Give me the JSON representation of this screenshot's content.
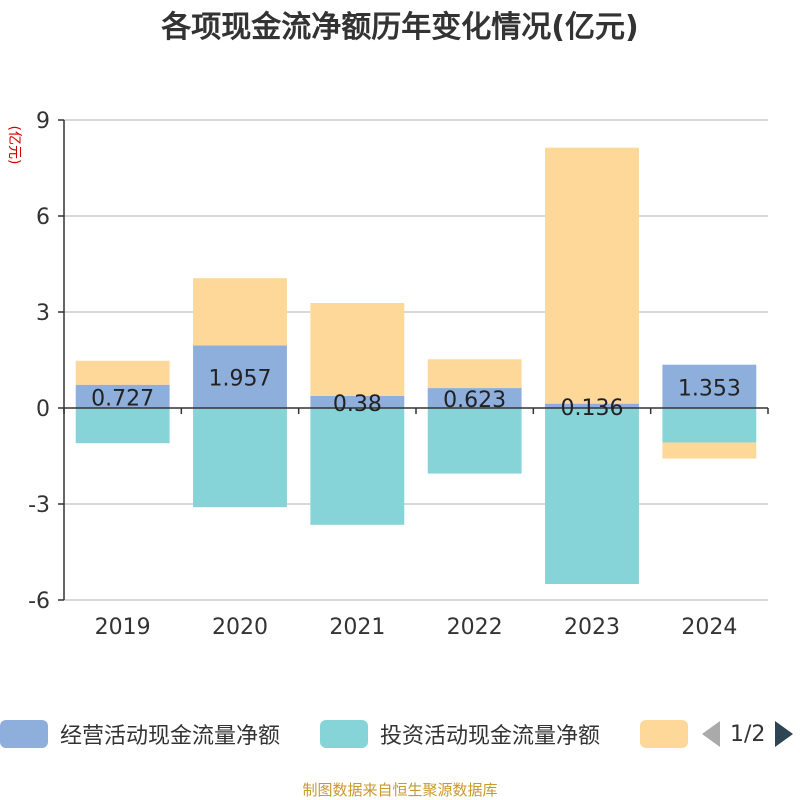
{
  "title": "各项现金流净额历年变化情况(亿元)",
  "source_note": "制图数据来自恒生聚源数据库",
  "colors": {
    "operating": "#8eaedb",
    "investing": "#86d4d8",
    "financing": "#fdd899",
    "axis": "#333333",
    "grid": "#cccccc",
    "ylabel": "#cc0000"
  },
  "legend": {
    "items": [
      {
        "label": "经营活动现金流量净额",
        "color": "#8eaedb"
      },
      {
        "label": "投资活动现金流量净额",
        "color": "#86d4d8"
      },
      {
        "label": "",
        "color": "#fdd899"
      }
    ],
    "page_text": "1/2"
  },
  "chart_data": {
    "type": "bar",
    "stacked": true,
    "ylabel": "(亿元)",
    "xlabel": "",
    "ylim": [
      -6,
      9
    ],
    "yticks": [
      -6,
      -3,
      0,
      3,
      6,
      9
    ],
    "grid": true,
    "legend_position": "bottom",
    "categories": [
      "2019",
      "2020",
      "2021",
      "2022",
      "2023",
      "2024"
    ],
    "series": [
      {
        "name": "经营活动现金流量净额",
        "values": [
          0.727,
          1.957,
          0.38,
          0.623,
          0.136,
          1.353
        ],
        "labels": [
          "0.727",
          "1.957",
          "0.38",
          "0.623",
          "0.136",
          "1.353"
        ]
      },
      {
        "name": "投资活动现金流量净额",
        "values": [
          -1.1,
          -3.1,
          -3.65,
          -2.05,
          -5.5,
          -1.08
        ]
      },
      {
        "values": [
          0.75,
          2.1,
          2.9,
          0.9,
          8.0,
          -0.5
        ]
      }
    ]
  }
}
